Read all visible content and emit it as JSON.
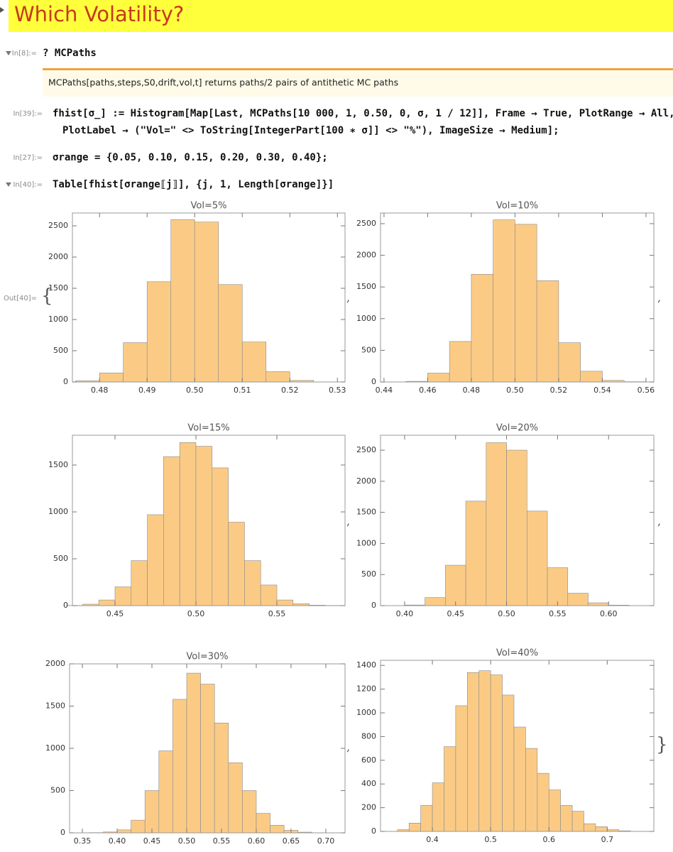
{
  "notebook": {
    "title": "Which Volatility?",
    "cells": [
      {
        "label": "In[8]:=",
        "code": [
          "? MCPaths"
        ]
      },
      {
        "label": "In[39]:=",
        "code": [
          "fhist[σ_] := Histogram[Map[Last, MCPaths[10 000, 1, 0.50, 0, σ, 1 / 12]], Frame → True, PlotRange → All,",
          "PlotLabel → (\"Vol=\" <> ToString[IntegerPart[100 ∗ σ]] <> \"%\"), ImageSize → Medium];"
        ]
      },
      {
        "label": "In[27]:=",
        "code": [
          "σrange = {0.05, 0.10, 0.15, 0.20, 0.30, 0.40};"
        ]
      },
      {
        "label": "In[40]:=",
        "code": [
          "Table[fhist[σrange⟦j⟧], {j, 1, Length[σrange]}]"
        ]
      }
    ],
    "info": "MCPaths[paths,steps,S0,drift,vol,t] returns paths/2 pairs of antithetic MC paths",
    "output_label": "Out[40]=",
    "output_open": "{",
    "separator": ",",
    "output_close": "}"
  },
  "chart_data": [
    {
      "type": "histogram",
      "title": "Vol=5%",
      "color": "#fbcb86",
      "bins": [
        0.475,
        0.48,
        0.485,
        0.49,
        0.495,
        0.5,
        0.505,
        0.51,
        0.515,
        0.52,
        0.525
      ],
      "values": [
        20,
        145,
        630,
        1605,
        2600,
        2560,
        1560,
        640,
        165,
        25
      ],
      "xlim": [
        0.4743,
        0.5316
      ],
      "ylim": [
        0,
        2705
      ],
      "xticks": [
        0.48,
        0.49,
        {
          "value": 0.5,
          "label": "0.50"
        },
        0.51,
        0.52,
        0.53
      ],
      "yticks": [
        0,
        500,
        1000,
        1500,
        2000,
        2500
      ]
    },
    {
      "type": "histogram",
      "title": "Vol=10%",
      "color": "#fbcb86",
      "bins": [
        0.45,
        0.46,
        0.47,
        0.48,
        0.49,
        0.5,
        0.51,
        0.52,
        0.53,
        0.54,
        0.55,
        0.56
      ],
      "values": [
        10,
        140,
        640,
        1700,
        2560,
        2490,
        1600,
        620,
        170,
        25,
        5
      ],
      "xlim": [
        0.4384,
        0.5636
      ],
      "ylim": [
        0,
        2668
      ],
      "xticks": [
        0.44,
        0.46,
        0.48,
        {
          "value": 0.5,
          "label": "0.50"
        },
        0.52,
        0.54,
        0.56
      ],
      "yticks": [
        0,
        500,
        1000,
        1500,
        2000,
        2500
      ]
    },
    {
      "type": "histogram",
      "title": "Vol=15%",
      "color": "#fbcb86",
      "bins": [
        0.42,
        0.43,
        0.44,
        0.45,
        0.46,
        0.47,
        0.48,
        0.49,
        0.5,
        0.51,
        0.52,
        0.53,
        0.54,
        0.55,
        0.56,
        0.57,
        0.58,
        0.59
      ],
      "values": [
        2,
        15,
        60,
        200,
        480,
        970,
        1590,
        1740,
        1700,
        1470,
        890,
        480,
        220,
        60,
        20,
        5,
        2
      ],
      "xlim": [
        0.4237,
        0.5921
      ],
      "ylim": [
        0,
        1818
      ],
      "xticks": [
        0.45,
        {
          "value": 0.5,
          "label": "0.50"
        },
        0.55
      ],
      "yticks": [
        0,
        500,
        1000,
        1500
      ]
    },
    {
      "type": "histogram",
      "title": "Vol=20%",
      "color": "#fbcb86",
      "bins": [
        0.4,
        0.42,
        0.44,
        0.46,
        0.48,
        0.5,
        0.52,
        0.54,
        0.56,
        0.58,
        0.6,
        0.62
      ],
      "values": [
        10,
        130,
        650,
        1680,
        2620,
        2500,
        1520,
        610,
        200,
        45,
        8
      ],
      "xlim": [
        0.3764,
        0.6444
      ],
      "ylim": [
        0,
        2740
      ],
      "xticks": [
        {
          "value": 0.4,
          "label": "0.40"
        },
        0.45,
        {
          "value": 0.5,
          "label": "0.50"
        },
        0.55,
        {
          "value": 0.6,
          "label": "0.60"
        }
      ],
      "yticks": [
        0,
        500,
        1000,
        1500,
        2000,
        2500
      ]
    },
    {
      "type": "histogram",
      "title": "Vol=30%",
      "color": "#fbcb86",
      "bins": [
        0.36,
        0.38,
        0.4,
        0.42,
        0.44,
        0.46,
        0.48,
        0.5,
        0.52,
        0.54,
        0.56,
        0.58,
        0.6,
        0.62,
        0.64,
        0.66,
        0.68,
        0.7
      ],
      "values": [
        3,
        10,
        35,
        150,
        500,
        970,
        1580,
        1890,
        1760,
        1300,
        830,
        500,
        230,
        90,
        30,
        8,
        2
      ],
      "xlim": [
        0.3316,
        0.7276
      ],
      "ylim": [
        0,
        2000
      ],
      "xticks": [
        0.35,
        {
          "value": 0.4,
          "label": "0.40"
        },
        0.45,
        {
          "value": 0.5,
          "label": "0.50"
        },
        0.55,
        {
          "value": 0.6,
          "label": "0.60"
        },
        0.65,
        {
          "value": 0.7,
          "label": "0.70"
        }
      ],
      "yticks": [
        0,
        500,
        1000,
        1500,
        2000
      ]
    },
    {
      "type": "histogram",
      "title": "Vol=40%",
      "color": "#fbcb86",
      "bins": [
        0.34,
        0.36,
        0.38,
        0.4,
        0.42,
        0.44,
        0.46,
        0.48,
        0.5,
        0.52,
        0.54,
        0.56,
        0.58,
        0.6,
        0.62,
        0.64,
        0.66,
        0.68,
        0.7,
        0.72,
        0.74
      ],
      "values": [
        15,
        70,
        220,
        410,
        715,
        1060,
        1340,
        1355,
        1320,
        1150,
        880,
        700,
        490,
        350,
        220,
        170,
        65,
        40,
        15,
        5
      ],
      "xlim": [
        0.311,
        0.78
      ],
      "ylim": [
        0,
        1443
      ],
      "xticks": [
        0.4,
        0.5,
        0.6,
        0.7
      ],
      "yticks": [
        0,
        200,
        400,
        600,
        800,
        1000,
        1200,
        1400
      ]
    }
  ]
}
